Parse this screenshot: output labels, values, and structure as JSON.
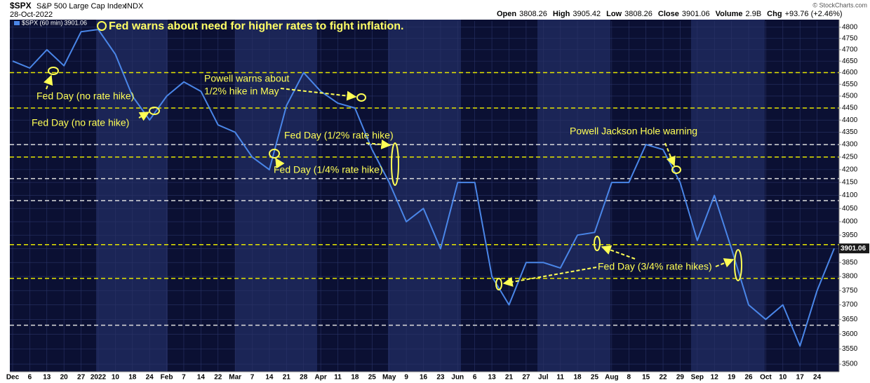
{
  "chart_data": {
    "type": "line",
    "symbol": "$SPX",
    "title": "S&P 500 Large Cap Index",
    "exchange": "INDX",
    "date": "28-Oct-2022",
    "credit": "© StockCharts.com",
    "quote": [
      {
        "label": "Open",
        "value": "3808.26"
      },
      {
        "label": "High",
        "value": "3905.42"
      },
      {
        "label": "Low",
        "value": "3808.26"
      },
      {
        "label": "Close",
        "value": "3901.06"
      },
      {
        "label": "Volume",
        "value": "2.9B"
      },
      {
        "label": "Chg",
        "value": "+93.76 (+2.46%)"
      }
    ],
    "categories": [
      "Dec",
      "6",
      "13",
      "20",
      "27",
      "2022",
      "10",
      "18",
      "24",
      "Feb",
      "7",
      "14",
      "22",
      "Mar",
      "7",
      "14",
      "21",
      "28",
      "Apr",
      "11",
      "18",
      "25",
      "May",
      "9",
      "16",
      "23",
      "Jun",
      "6",
      "13",
      "21",
      "27",
      "Jul",
      "11",
      "18",
      "25",
      "Aug",
      "8",
      "15",
      "22",
      "29",
      "Sep",
      "12",
      "19",
      "26",
      "Oct",
      "10",
      "17",
      "24",
      null
    ],
    "series": [
      {
        "name": "$SPX (60 min)",
        "color": "#4a86e8",
        "last_value_label": "3901.06",
        "values": [
          4650,
          4620,
          4700,
          4630,
          4780,
          4790,
          4680,
          4500,
          4400,
          4500,
          4560,
          4520,
          4380,
          4350,
          4250,
          4200,
          4460,
          4600,
          4520,
          4470,
          4450,
          4280,
          4150,
          4000,
          4050,
          3900,
          4150,
          4150,
          3800,
          3700,
          3850,
          3850,
          3830,
          3950,
          3960,
          4150,
          4150,
          4300,
          4280,
          4150,
          3930,
          4100,
          3900,
          3700,
          3650,
          3700,
          3560,
          3750,
          3901.06
        ]
      }
    ],
    "log_scale": true,
    "ylim": [
      3475,
      4828
    ],
    "yticks": [
      3500,
      3550,
      3600,
      3650,
      3700,
      3750,
      3800,
      3850,
      3900,
      3950,
      4000,
      4050,
      4100,
      4150,
      4200,
      4250,
      4300,
      4350,
      4400,
      4450,
      4500,
      4550,
      4600,
      4650,
      4700,
      4750,
      4800
    ],
    "grid": true,
    "levels": [
      {
        "value": 4600,
        "color": "#e6e600"
      },
      {
        "value": 4450,
        "color": "#e6e600"
      },
      {
        "value": 4300,
        "color": "#dddddd"
      },
      {
        "value": 4250,
        "color": "#e6e600"
      },
      {
        "value": 4165,
        "color": "#dddddd"
      },
      {
        "value": 4080,
        "color": "#dddddd"
      },
      {
        "value": 3915,
        "color": "#e6e600"
      },
      {
        "value": 3793,
        "color": "#e6e600"
      },
      {
        "value": 3630,
        "color": "#dddddd"
      }
    ],
    "annotations": [
      "Fed warns about need for higher rates to fight inflation.",
      "Fed Day (no rate hike)",
      "Fed Day (no rate hike)",
      "Powell warns about",
      "1/2% hike in May",
      "Fed Day (1/2% rate hike)",
      "Fed Day (1/4% rate hike)",
      "Powell Jackson Hole warning",
      "Fed Day (3/4% rate hikes)"
    ]
  }
}
